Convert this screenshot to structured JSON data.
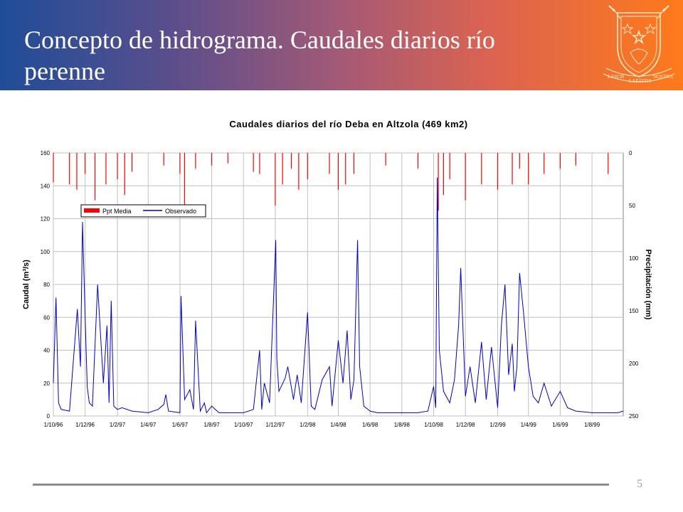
{
  "slide": {
    "title": "Concepto de hidrograma. Caudales diarios río perenne",
    "page_number": "5",
    "colors": {
      "header_start": "#1f4d98",
      "header_end": "#ff7a1a",
      "precip": "#ff0000",
      "flow": "#0000cc"
    }
  },
  "crest": {
    "motto": [
      "LABOR",
      "LAETITIA",
      "NOSTRA"
    ]
  },
  "chart_data": {
    "type": "line",
    "title": "Caudales diarios del río Deba en Altzola (469 km2)",
    "ylabel": "Caudal (m³/s)",
    "y2label": "Precipitación (mm)",
    "ylim": [
      0,
      160
    ],
    "y_ticks": [
      0,
      20,
      40,
      60,
      80,
      100,
      120,
      140,
      160
    ],
    "y2lim": [
      0,
      250
    ],
    "y2_inverted": true,
    "y2_ticks": [
      0,
      50,
      100,
      150,
      200,
      250
    ],
    "x_tick_labels": [
      "1/10/96",
      "1/12/96",
      "1/2/97",
      "1/4/97",
      "1/6/97",
      "1/8/97",
      "1/10/97",
      "1/12/97",
      "1/2/98",
      "1/4/98",
      "1/6/98",
      "1/8/98",
      "1/10/98",
      "1/12/98",
      "1/2/99",
      "1/4/99",
      "1/6/99",
      "1/8/99"
    ],
    "grid": true,
    "legend_position": "upper-left",
    "series": [
      {
        "name": "Ppt Media",
        "type": "bar",
        "axis": "right",
        "color": "#ff0000",
        "x": [
          "1/10/96",
          "1/11/96",
          "15/11/96",
          "1/12/96",
          "20/12/96",
          "10/1/97",
          "1/2/97",
          "15/2/97",
          "1/3/97",
          "1/5/97",
          "1/6/97",
          "10/6/97",
          "1/7/97",
          "1/8/97",
          "1/9/97",
          "20/10/97",
          "1/11/97",
          "1/12/97",
          "15/12/97",
          "1/1/98",
          "15/1/98",
          "1/2/98",
          "15/3/98",
          "1/4/98",
          "15/4/98",
          "1/5/98",
          "1/7/98",
          "1/9/98",
          "10/10/98",
          "20/10/98",
          "1/11/98",
          "1/12/98",
          "1/1/99",
          "1/2/99",
          "1/3/99",
          "15/3/99",
          "1/4/99",
          "1/5/99",
          "1/6/99",
          "1/7/99",
          "1/9/99"
        ],
        "values": [
          28,
          30,
          35,
          20,
          45,
          30,
          25,
          40,
          18,
          12,
          20,
          50,
          15,
          12,
          10,
          18,
          20,
          50,
          30,
          15,
          35,
          25,
          20,
          35,
          30,
          20,
          12,
          15,
          55,
          40,
          25,
          45,
          30,
          35,
          30,
          15,
          30,
          20,
          15,
          12,
          20
        ]
      },
      {
        "name": "Observado",
        "type": "line",
        "axis": "left",
        "color": "#0000cc",
        "x": [
          "1/10/96",
          "6/10/96",
          "11/10/96",
          "16/10/96",
          "1/11/96",
          "16/11/96",
          "22/11/96",
          "26/11/96",
          "1/12/96",
          "5/12/96",
          "9/12/96",
          "15/12/96",
          "25/12/96",
          "5/1/97",
          "12/1/97",
          "16/1/97",
          "20/1/97",
          "25/1/97",
          "1/2/97",
          "10/2/97",
          "1/3/97",
          "1/4/97",
          "20/4/97",
          "1/5/97",
          "5/5/97",
          "10/5/97",
          "1/6/97",
          "3/6/97",
          "6/6/97",
          "10/6/97",
          "20/6/97",
          "27/6/97",
          "1/7/97",
          "10/7/97",
          "18/7/97",
          "22/7/97",
          "1/8/97",
          "15/8/97",
          "1/9/97",
          "1/10/97",
          "20/10/97",
          "1/11/97",
          "5/11/97",
          "10/11/97",
          "20/11/97",
          "2/12/97",
          "4/12/97",
          "8/12/97",
          "20/12/97",
          "25/12/97",
          "5/1/98",
          "12/1/98",
          "20/1/98",
          "1/2/98",
          "8/2/98",
          "15/2/98",
          "1/3/98",
          "15/3/98",
          "20/3/98",
          "1/4/98",
          "10/4/98",
          "18/4/98",
          "25/4/98",
          "1/5/98",
          "8/5/98",
          "12/5/98",
          "20/5/98",
          "1/6/98",
          "15/6/98",
          "1/7/98",
          "15/7/98",
          "1/8/98",
          "15/8/98",
          "1/9/98",
          "20/9/98",
          "1/10/98",
          "5/10/98",
          "8/10/98",
          "12/10/98",
          "20/10/98",
          "1/11/98",
          "10/11/98",
          "18/11/98",
          "22/11/98",
          "1/12/98",
          "10/12/98",
          "20/12/98",
          "1/1/99",
          "10/1/99",
          "20/1/99",
          "1/2/99",
          "8/2/99",
          "15/2/99",
          "22/2/99",
          "1/3/99",
          "5/3/99",
          "10/3/99",
          "15/3/99",
          "22/3/99",
          "1/4/99",
          "10/4/99",
          "20/4/99",
          "1/5/99",
          "15/5/99",
          "1/6/99",
          "15/6/99",
          "1/7/99",
          "1/8/99",
          "20/8/99",
          "1/9/99",
          "20/9/99",
          "30/9/99"
        ],
        "values": [
          20,
          72,
          8,
          4,
          3,
          65,
          30,
          118,
          60,
          18,
          8,
          6,
          80,
          20,
          55,
          8,
          70,
          6,
          4,
          5,
          3,
          2,
          4,
          7,
          13,
          3,
          2,
          73,
          46,
          10,
          16,
          4,
          58,
          3,
          8,
          2,
          6,
          2,
          2,
          2,
          4,
          40,
          4,
          20,
          8,
          107,
          35,
          15,
          23,
          30,
          10,
          25,
          8,
          63,
          6,
          4,
          22,
          30,
          6,
          46,
          20,
          52,
          10,
          22,
          107,
          30,
          6,
          3,
          2,
          2,
          2,
          2,
          2,
          2,
          3,
          18,
          5,
          145,
          40,
          15,
          8,
          22,
          55,
          90,
          12,
          30,
          8,
          45,
          10,
          42,
          5,
          55,
          80,
          25,
          44,
          15,
          30,
          87,
          65,
          30,
          12,
          8,
          20,
          6,
          15,
          5,
          3,
          2,
          2,
          2,
          2,
          3
        ]
      }
    ]
  }
}
